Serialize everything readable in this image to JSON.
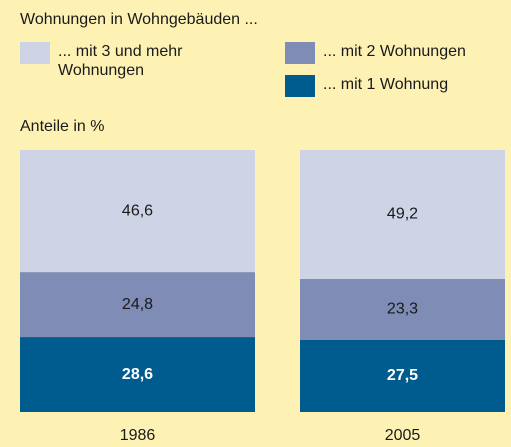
{
  "chart_data": {
    "type": "stacked-bar",
    "title": "Wohnungen in Wohngebäuden ...",
    "y_label": "Anteile in %",
    "categories": [
      "1986",
      "2005"
    ],
    "ylim": [
      0,
      100
    ],
    "series": [
      {
        "name": "... mit 1 Wohnung",
        "color": "#005b8e",
        "values": [
          28.6,
          27.5
        ],
        "value_labels": [
          "28,6",
          "27,5"
        ]
      },
      {
        "name": "... mit 2 Wohnungen",
        "color": "#7e8cb6",
        "values": [
          24.8,
          23.3
        ],
        "value_labels": [
          "24,8",
          "23,3"
        ]
      },
      {
        "name": "... mit 3 und mehr Wohnungen",
        "color": "#cfd3e6",
        "values": [
          46.6,
          49.2
        ],
        "value_labels": [
          "46,6",
          "49,2"
        ]
      }
    ]
  }
}
